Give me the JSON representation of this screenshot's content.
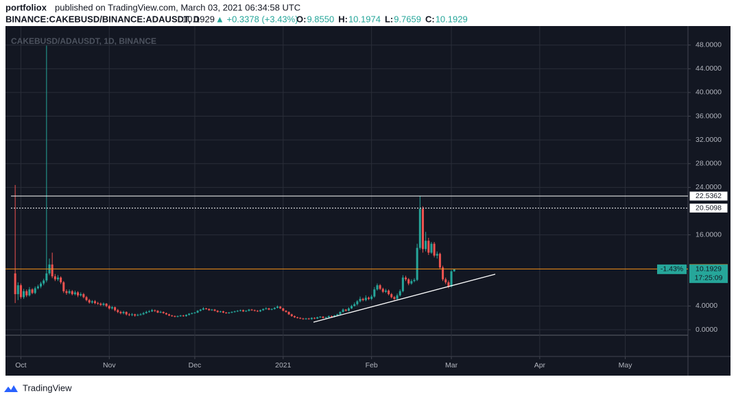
{
  "header": {
    "author": "portfoliox",
    "published": "published on TradingView.com, March 03, 2021 06:34:58 UTC",
    "symbol": "BINANCE:CAKEBUSD/BINANCE:ADAUSDT, D",
    "change": "▲ +0.3378 (+3.43%)",
    "ohlc": [
      {
        "label": "O:",
        "value": "9.8550"
      },
      {
        "label": "H:",
        "value": "10.1974"
      },
      {
        "label": "L:",
        "value": "9.7659"
      },
      {
        "label": "C:",
        "value": "10.1929"
      }
    ]
  },
  "chart_data": {
    "type": "candlestick",
    "title": "CAKEBUSD/ADAUSDT, 1D, BINANCE",
    "up_color": "#26a69a",
    "down_color": "#ef5350",
    "candles": [
      [
        9.5,
        24.4,
        4.5,
        6
      ],
      [
        6,
        8,
        5,
        7.5
      ],
      [
        7.5,
        7.8,
        5.2,
        5.5
      ],
      [
        5.5,
        6.9,
        5.2,
        6.5
      ],
      [
        6.5,
        6.8,
        5.5,
        5.8
      ],
      [
        5.8,
        7.2,
        5.6,
        6.8
      ],
      [
        6.8,
        7,
        6,
        6.2
      ],
      [
        6.2,
        7.3,
        6,
        7
      ],
      [
        7,
        7.6,
        6.8,
        7.3
      ],
      [
        7.3,
        8.1,
        7,
        7.8
      ],
      [
        7.8,
        8.6,
        7.5,
        8.3
      ],
      [
        8.3,
        47.9,
        8,
        9.5
      ],
      [
        9.5,
        12,
        9.2,
        11
      ],
      [
        11,
        13,
        8.7,
        9
      ],
      [
        9,
        9.4,
        8.2,
        8.5
      ],
      [
        8.5,
        9.2,
        8.2,
        8.8
      ],
      [
        8.8,
        9,
        7.7,
        8
      ],
      [
        8,
        8.2,
        6.2,
        6.5
      ],
      [
        6.5,
        6.8,
        5.9,
        6.2
      ],
      [
        6.2,
        6.8,
        6,
        6.5
      ],
      [
        6.5,
        6.7,
        5.8,
        6
      ],
      [
        6,
        6.6,
        5.8,
        6.3
      ],
      [
        6.3,
        6.5,
        5.5,
        5.8
      ],
      [
        5.8,
        6.3,
        5.6,
        6
      ],
      [
        6,
        6.2,
        5.3,
        5.5
      ],
      [
        5.5,
        5.7,
        4.8,
        5
      ],
      [
        5,
        5.2,
        4.4,
        4.6
      ],
      [
        4.6,
        5,
        4.4,
        4.8
      ],
      [
        4.8,
        5,
        4.3,
        4.5
      ],
      [
        4.5,
        4.7,
        4.2,
        4.4
      ],
      [
        4.4,
        4.6,
        4,
        4.2
      ],
      [
        4.2,
        4.6,
        4,
        4.4
      ],
      [
        4.4,
        4.5,
        3.8,
        4
      ],
      [
        4,
        4.2,
        3.4,
        3.6
      ],
      [
        3.6,
        4,
        3.4,
        3.8
      ],
      [
        3.8,
        3.9,
        3.1,
        3.3
      ],
      [
        3.3,
        3.5,
        2.8,
        3
      ],
      [
        3,
        3.2,
        2.6,
        2.8
      ],
      [
        2.8,
        3.2,
        2.6,
        3
      ],
      [
        3,
        3.1,
        2.4,
        2.6
      ],
      [
        2.6,
        2.8,
        2.3,
        2.5
      ],
      [
        2.5,
        2.8,
        2.3,
        2.6
      ],
      [
        2.6,
        2.7,
        2.2,
        2.4
      ],
      [
        2.4,
        2.7,
        2.3,
        2.5
      ],
      [
        2.5,
        2.8,
        2.4,
        2.6
      ],
      [
        2.6,
        3,
        2.5,
        2.8
      ],
      [
        2.8,
        3.2,
        2.7,
        3
      ],
      [
        3,
        3.3,
        2.9,
        3.1
      ],
      [
        3.1,
        3.5,
        3,
        3.3
      ],
      [
        3.3,
        3.4,
        3,
        3.2
      ],
      [
        3.2,
        3.3,
        2.8,
        2.9
      ],
      [
        2.9,
        3.2,
        2.8,
        3
      ],
      [
        3,
        3.1,
        2.7,
        2.8
      ],
      [
        2.8,
        2.9,
        2.5,
        2.6
      ],
      [
        2.6,
        2.7,
        2.3,
        2.4
      ],
      [
        2.4,
        2.5,
        2.2,
        2.3
      ],
      [
        2.3,
        2.4,
        2.1,
        2.2
      ],
      [
        2.2,
        2.4,
        2.1,
        2.3
      ],
      [
        2.3,
        2.5,
        2.2,
        2.4
      ],
      [
        2.4,
        2.5,
        2.2,
        2.3
      ],
      [
        2.3,
        2.6,
        2.2,
        2.5
      ],
      [
        2.5,
        2.8,
        2.4,
        2.7
      ],
      [
        2.7,
        2.9,
        2.6,
        2.8
      ],
      [
        2.8,
        3,
        2.7,
        2.9
      ],
      [
        2.9,
        3.3,
        2.8,
        3.2
      ],
      [
        3.2,
        3.5,
        3.1,
        3.4
      ],
      [
        3.4,
        3.8,
        3.3,
        3.6
      ],
      [
        3.6,
        3.7,
        3.4,
        3.5
      ],
      [
        3.5,
        3.6,
        3.2,
        3.3
      ],
      [
        3.3,
        3.5,
        3.2,
        3.4
      ],
      [
        3.4,
        3.5,
        3.1,
        3.2
      ],
      [
        3.2,
        3.3,
        2.9,
        3
      ],
      [
        3,
        3.2,
        2.9,
        3.1
      ],
      [
        3.1,
        3.2,
        2.8,
        2.9
      ],
      [
        2.9,
        3,
        2.7,
        2.8
      ],
      [
        2.8,
        3,
        2.7,
        2.9
      ],
      [
        2.9,
        3.1,
        2.8,
        3
      ],
      [
        3,
        3.2,
        2.9,
        3.1
      ],
      [
        3.1,
        3.3,
        3,
        3.2
      ],
      [
        3.2,
        3.4,
        3.1,
        3.3
      ],
      [
        3.3,
        3.4,
        3,
        3.1
      ],
      [
        3.1,
        3.3,
        3,
        3.2
      ],
      [
        3.2,
        3.5,
        3.1,
        3.4
      ],
      [
        3.4,
        3.5,
        3.2,
        3.3
      ],
      [
        3.3,
        3.4,
        3.1,
        3.2
      ],
      [
        3.2,
        3.3,
        3,
        3.1
      ],
      [
        3.1,
        3.4,
        3,
        3.3
      ],
      [
        3.3,
        3.6,
        3.2,
        3.5
      ],
      [
        3.5,
        3.8,
        3.4,
        3.6
      ],
      [
        3.6,
        3.7,
        3.3,
        3.4
      ],
      [
        3.4,
        3.6,
        3.3,
        3.5
      ],
      [
        3.5,
        3.8,
        3.4,
        3.7
      ],
      [
        3.7,
        4.1,
        3.6,
        3.9
      ],
      [
        3.9,
        4,
        3.5,
        3.6
      ],
      [
        3.6,
        3.7,
        3.1,
        3.2
      ],
      [
        3.2,
        3.3,
        2.9,
        3
      ],
      [
        3,
        3.1,
        2.5,
        2.6
      ],
      [
        2.6,
        2.7,
        2.2,
        2.3
      ],
      [
        2.3,
        2.4,
        2,
        2.1
      ],
      [
        2.1,
        2.2,
        1.9,
        2
      ],
      [
        2,
        2.1,
        1.8,
        1.9
      ],
      [
        1.9,
        2,
        1.7,
        1.8
      ],
      [
        1.8,
        2,
        1.7,
        1.9
      ],
      [
        1.9,
        2,
        1.7,
        1.8
      ],
      [
        1.8,
        2.1,
        1.7,
        2
      ],
      [
        2,
        2.1,
        1.8,
        1.9
      ],
      [
        1.9,
        2.2,
        1.8,
        2.1
      ],
      [
        2.1,
        2.3,
        2,
        2.2
      ],
      [
        2.2,
        2.3,
        1.9,
        2
      ],
      [
        2,
        2.2,
        1.9,
        2.1
      ],
      [
        2.1,
        2.4,
        2,
        2.3
      ],
      [
        2.3,
        2.4,
        2.1,
        2.2
      ],
      [
        2.2,
        2.5,
        2.1,
        2.4
      ],
      [
        2.4,
        2.7,
        2.3,
        2.6
      ],
      [
        2.6,
        3.1,
        2.5,
        3
      ],
      [
        3,
        3.6,
        2.9,
        3.4
      ],
      [
        3.4,
        3.5,
        3.1,
        3.2
      ],
      [
        3.2,
        3.8,
        3.1,
        3.6
      ],
      [
        3.6,
        4.2,
        3.5,
        4
      ],
      [
        4,
        4.6,
        3.9,
        4.3
      ],
      [
        4.3,
        5,
        4.1,
        4.8
      ],
      [
        4.8,
        5.6,
        4.6,
        5.2
      ],
      [
        5.2,
        5.4,
        4.8,
        5
      ],
      [
        5,
        5.8,
        4.8,
        5.4
      ],
      [
        5.4,
        5.6,
        5,
        5.2
      ],
      [
        5.2,
        5.9,
        5,
        5.6
      ],
      [
        5.6,
        7.2,
        5.4,
        6.8
      ],
      [
        6.8,
        7.8,
        6.6,
        7.5
      ],
      [
        7.5,
        7.7,
        6.7,
        6.9
      ],
      [
        6.9,
        7.1,
        6.2,
        6.4
      ],
      [
        6.4,
        6.9,
        6.2,
        6.6
      ],
      [
        6.6,
        6.8,
        5.8,
        6
      ],
      [
        6,
        6.2,
        5.3,
        5.5
      ],
      [
        5.5,
        5.7,
        5,
        5.2
      ],
      [
        5.2,
        6.1,
        5,
        5.8
      ],
      [
        5.8,
        6.8,
        5.6,
        6.5
      ],
      [
        6.5,
        9.2,
        6.3,
        8.8
      ],
      [
        8.8,
        9.1,
        8.2,
        8.5
      ],
      [
        8.5,
        8.7,
        7.5,
        7.8
      ],
      [
        7.8,
        8.5,
        7.6,
        8.2
      ],
      [
        8.2,
        8.7,
        8,
        8.4
      ],
      [
        8.4,
        14.5,
        8.2,
        13.8
      ],
      [
        13.8,
        22.5,
        13.5,
        20.4
      ],
      [
        20.4,
        20.8,
        13,
        13.6
      ],
      [
        13.6,
        16.5,
        13.2,
        15
      ],
      [
        15,
        15.5,
        12.6,
        13
      ],
      [
        13,
        14.8,
        12.8,
        14.5
      ],
      [
        14.5,
        14.8,
        12.2,
        12.5
      ],
      [
        12.5,
        13.2,
        12,
        12.8
      ],
      [
        12.8,
        13,
        10.2,
        10.5
      ],
      [
        10.5,
        10.8,
        8.2,
        8.5
      ],
      [
        8.5,
        8.8,
        7.7,
        8
      ],
      [
        8,
        8.3,
        7,
        7.3
      ],
      [
        7.3,
        10.1,
        7.1,
        9.855
      ],
      [
        9.855,
        10.1974,
        9.7659,
        10.1929
      ]
    ],
    "xlim": [
      -3.4,
      236
    ],
    "xticks": [
      {
        "value": 2,
        "label": "Oct"
      },
      {
        "value": 33,
        "label": "Nov"
      },
      {
        "value": 63,
        "label": "Dec"
      },
      {
        "value": 94,
        "label": "2021"
      },
      {
        "value": 125,
        "label": "Feb"
      },
      {
        "value": 153,
        "label": "Mar"
      },
      {
        "value": 184,
        "label": "Apr"
      },
      {
        "value": 214,
        "label": "May"
      }
    ],
    "ylim": [
      -4.5,
      51.2
    ],
    "yticks": [
      {
        "value": 0,
        "label": "0.0000"
      },
      {
        "value": 4,
        "label": "4.0000"
      },
      {
        "value": 16,
        "label": "16.0000"
      },
      {
        "value": 24,
        "label": "24.0000"
      },
      {
        "value": 28,
        "label": "28.0000"
      },
      {
        "value": 32,
        "label": "32.0000"
      },
      {
        "value": 36,
        "label": "36.0000"
      },
      {
        "value": 40,
        "label": "40.0000"
      },
      {
        "value": 44,
        "label": "44.0000"
      },
      {
        "value": 48,
        "label": "48.0000"
      }
    ],
    "grid": true,
    "price_lines": [
      {
        "value": 22.5362,
        "color": "#ffffff",
        "style": "solid"
      },
      {
        "value": 20.5098,
        "color": "#ffffff",
        "style": "dotted"
      },
      {
        "value": 10.2429,
        "color": "#f7931a",
        "style": "solid"
      }
    ],
    "last_price": {
      "change": "-1.43%",
      "countdown": "17:25:09"
    },
    "footer": "TradingView"
  }
}
